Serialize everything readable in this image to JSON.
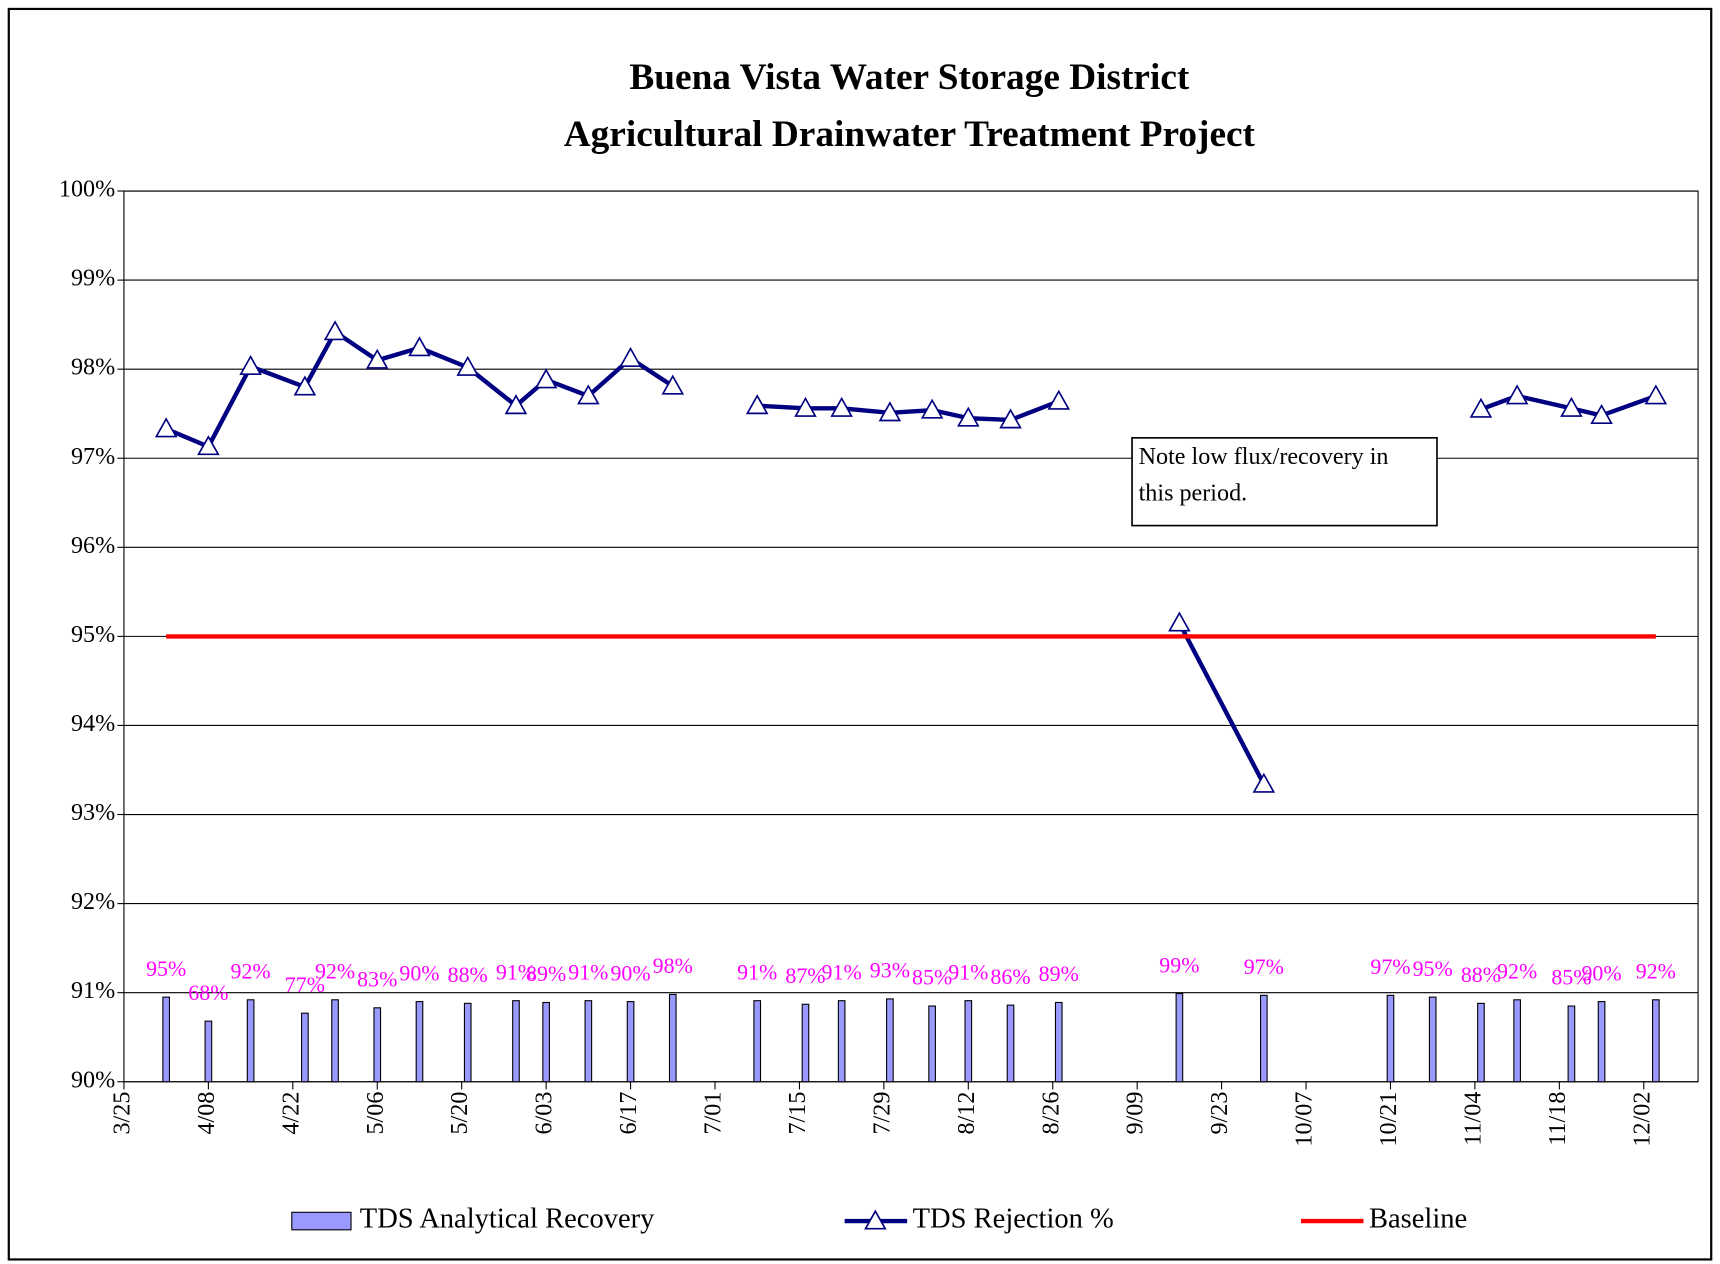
{
  "chart_data": {
    "type": "bar-line",
    "title": [
      "Buena Vista Water Storage District",
      "Agricultural Drainwater Treatment Project"
    ],
    "x": [
      "4/01",
      "4/08",
      "4/15",
      "4/24",
      "4/29",
      "5/06",
      "5/13",
      "5/21",
      "5/29",
      "6/03",
      "6/10",
      "6/17",
      "6/24",
      "7/01",
      "7/08",
      "7/16",
      "7/22",
      "7/30",
      "8/06",
      "8/12",
      "8/19",
      "8/27",
      "9/06",
      "9/16",
      "9/30",
      "10/21",
      "10/28",
      "11/05",
      "11/11",
      "11/20",
      "11/25",
      "12/04"
    ],
    "xlim": [
      "3/25",
      "12/11"
    ],
    "xticks": [
      "3/25",
      "4/08",
      "4/22",
      "5/06",
      "5/20",
      "6/03",
      "6/17",
      "7/01",
      "7/15",
      "7/29",
      "8/12",
      "8/26",
      "9/09",
      "9/23",
      "10/07",
      "10/21",
      "11/04",
      "11/18",
      "12/02"
    ],
    "ylim": [
      90,
      100
    ],
    "yticks": [
      {
        "value": 90,
        "label": "90%"
      },
      {
        "value": 91,
        "label": "91%"
      },
      {
        "value": 92,
        "label": "92%"
      },
      {
        "value": 93,
        "label": "93%"
      },
      {
        "value": 94,
        "label": "94%"
      },
      {
        "value": 95,
        "label": "95%"
      },
      {
        "value": 96,
        "label": "96%"
      },
      {
        "value": 97,
        "label": "97%"
      },
      {
        "value": 98,
        "label": "98%"
      },
      {
        "value": 99,
        "label": "99%"
      },
      {
        "value": 100,
        "label": "100%"
      }
    ],
    "y2lim": [
      0,
      1000
    ],
    "grid": true,
    "legend": "bottom",
    "series": [
      {
        "name": "TDS Analytical Recovery",
        "type": "bar",
        "axis": "y2",
        "color": "#9999ff",
        "label_color": "#ff00ff",
        "values": [
          95,
          68,
          92,
          77,
          92,
          83,
          90,
          88,
          91,
          89,
          91,
          90,
          98,
          null,
          91,
          87,
          91,
          93,
          85,
          91,
          86,
          89,
          null,
          99,
          97,
          97,
          95,
          88,
          92,
          85,
          90,
          92
        ],
        "value_labels": [
          "95%",
          "68%",
          "92%",
          "77%",
          "92%",
          "83%",
          "90%",
          "88%",
          "91%",
          "89%",
          "91%",
          "90%",
          "98%",
          null,
          "91%",
          "87%",
          "91%",
          "93%",
          "85%",
          "91%",
          "86%",
          "89%",
          null,
          "99%",
          "97%",
          "97%",
          "95%",
          "88%",
          "92%",
          "85%",
          "90%",
          "92%"
        ]
      },
      {
        "name": "TDS Rejection %",
        "type": "line",
        "marker": "triangle",
        "color": "#000080",
        "values": [
          97.33,
          97.13,
          98.03,
          97.8,
          98.42,
          98.1,
          98.24,
          98.02,
          97.59,
          97.88,
          97.7,
          98.12,
          97.81,
          null,
          97.59,
          97.56,
          97.56,
          97.51,
          97.54,
          97.45,
          97.43,
          97.64,
          null,
          95.15,
          93.34,
          null,
          null,
          97.55,
          97.7,
          97.56,
          97.48,
          97.7
        ]
      },
      {
        "name": "Baseline",
        "type": "line",
        "color": "#ff0000",
        "x": [
          "4/01",
          "12/04"
        ],
        "values": [
          95,
          95
        ]
      }
    ],
    "annotation": [
      "Note low flux/recovery in",
      "this period."
    ]
  }
}
